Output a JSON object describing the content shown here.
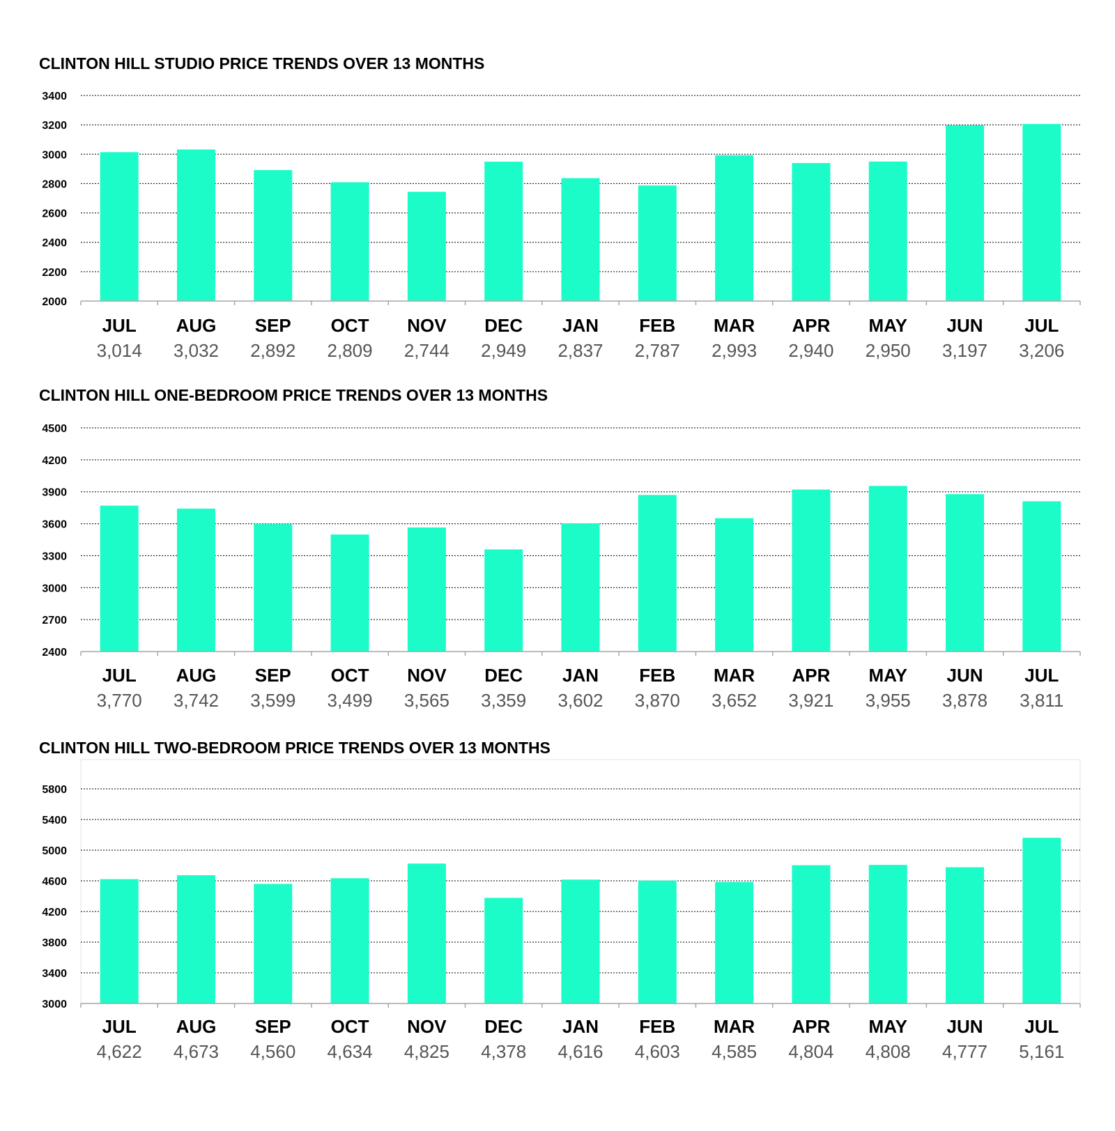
{
  "colors": {
    "bar": "#1cfcc9",
    "grid": "#000000",
    "axis": "#a6a6a6"
  },
  "chart_data": [
    {
      "type": "bar",
      "title": "CLINTON HILL STUDIO PRICE TRENDS OVER 13 MONTHS",
      "categories": [
        "JUL",
        "AUG",
        "SEP",
        "OCT",
        "NOV",
        "DEC",
        "JAN",
        "FEB",
        "MAR",
        "APR",
        "MAY",
        "JUN",
        "JUL"
      ],
      "value_labels": [
        "3,014",
        "3,032",
        "2,892",
        "2,809",
        "2,744",
        "2,949",
        "2,837",
        "2,787",
        "2,993",
        "2,940",
        "2,950",
        "3,197",
        "3,206"
      ],
      "values": [
        3014,
        3032,
        2892,
        2809,
        2744,
        2949,
        2837,
        2787,
        2993,
        2940,
        2950,
        3197,
        3206
      ],
      "ylim": [
        2000,
        3400
      ],
      "yticks": [
        2000,
        2200,
        2400,
        2600,
        2800,
        3000,
        3200,
        3400
      ],
      "xlabel": "",
      "ylabel": "",
      "grid": true
    },
    {
      "type": "bar",
      "title": "CLINTON HILL ONE-BEDROOM PRICE TRENDS OVER 13 MONTHS",
      "categories": [
        "JUL",
        "AUG",
        "SEP",
        "OCT",
        "NOV",
        "DEC",
        "JAN",
        "FEB",
        "MAR",
        "APR",
        "MAY",
        "JUN",
        "JUL"
      ],
      "value_labels": [
        "3,770",
        "3,742",
        "3,599",
        "3,499",
        "3,565",
        "3,359",
        "3,602",
        "3,870",
        "3,652",
        "3,921",
        "3,955",
        "3,878",
        "3,811"
      ],
      "values": [
        3770,
        3742,
        3599,
        3499,
        3565,
        3359,
        3602,
        3870,
        3652,
        3921,
        3955,
        3878,
        3811
      ],
      "ylim": [
        2400,
        4500
      ],
      "yticks": [
        2400,
        2700,
        3000,
        3300,
        3600,
        3900,
        4200,
        4500
      ],
      "xlabel": "",
      "ylabel": "",
      "grid": true
    },
    {
      "type": "bar",
      "title": "CLINTON HILL TWO-BEDROOM PRICE TRENDS OVER 13 MONTHS",
      "categories": [
        "JUL",
        "AUG",
        "SEP",
        "OCT",
        "NOV",
        "DEC",
        "JAN",
        "FEB",
        "MAR",
        "APR",
        "MAY",
        "JUN",
        "JUL"
      ],
      "value_labels": [
        "4,622",
        "4,673",
        "4,560",
        "4,634",
        "4,825",
        "4,378",
        "4,616",
        "4,603",
        "4,585",
        "4,804",
        "4,808",
        "4,777",
        "5,161"
      ],
      "values": [
        4622,
        4673,
        4560,
        4634,
        4825,
        4378,
        4616,
        4603,
        4585,
        4804,
        4808,
        4777,
        5161
      ],
      "ylim": [
        3000,
        6000
      ],
      "yticks": [
        3000,
        3400,
        3800,
        4200,
        4600,
        5000,
        5400,
        5800
      ],
      "xlabel": "",
      "ylabel": "",
      "grid": true
    }
  ]
}
